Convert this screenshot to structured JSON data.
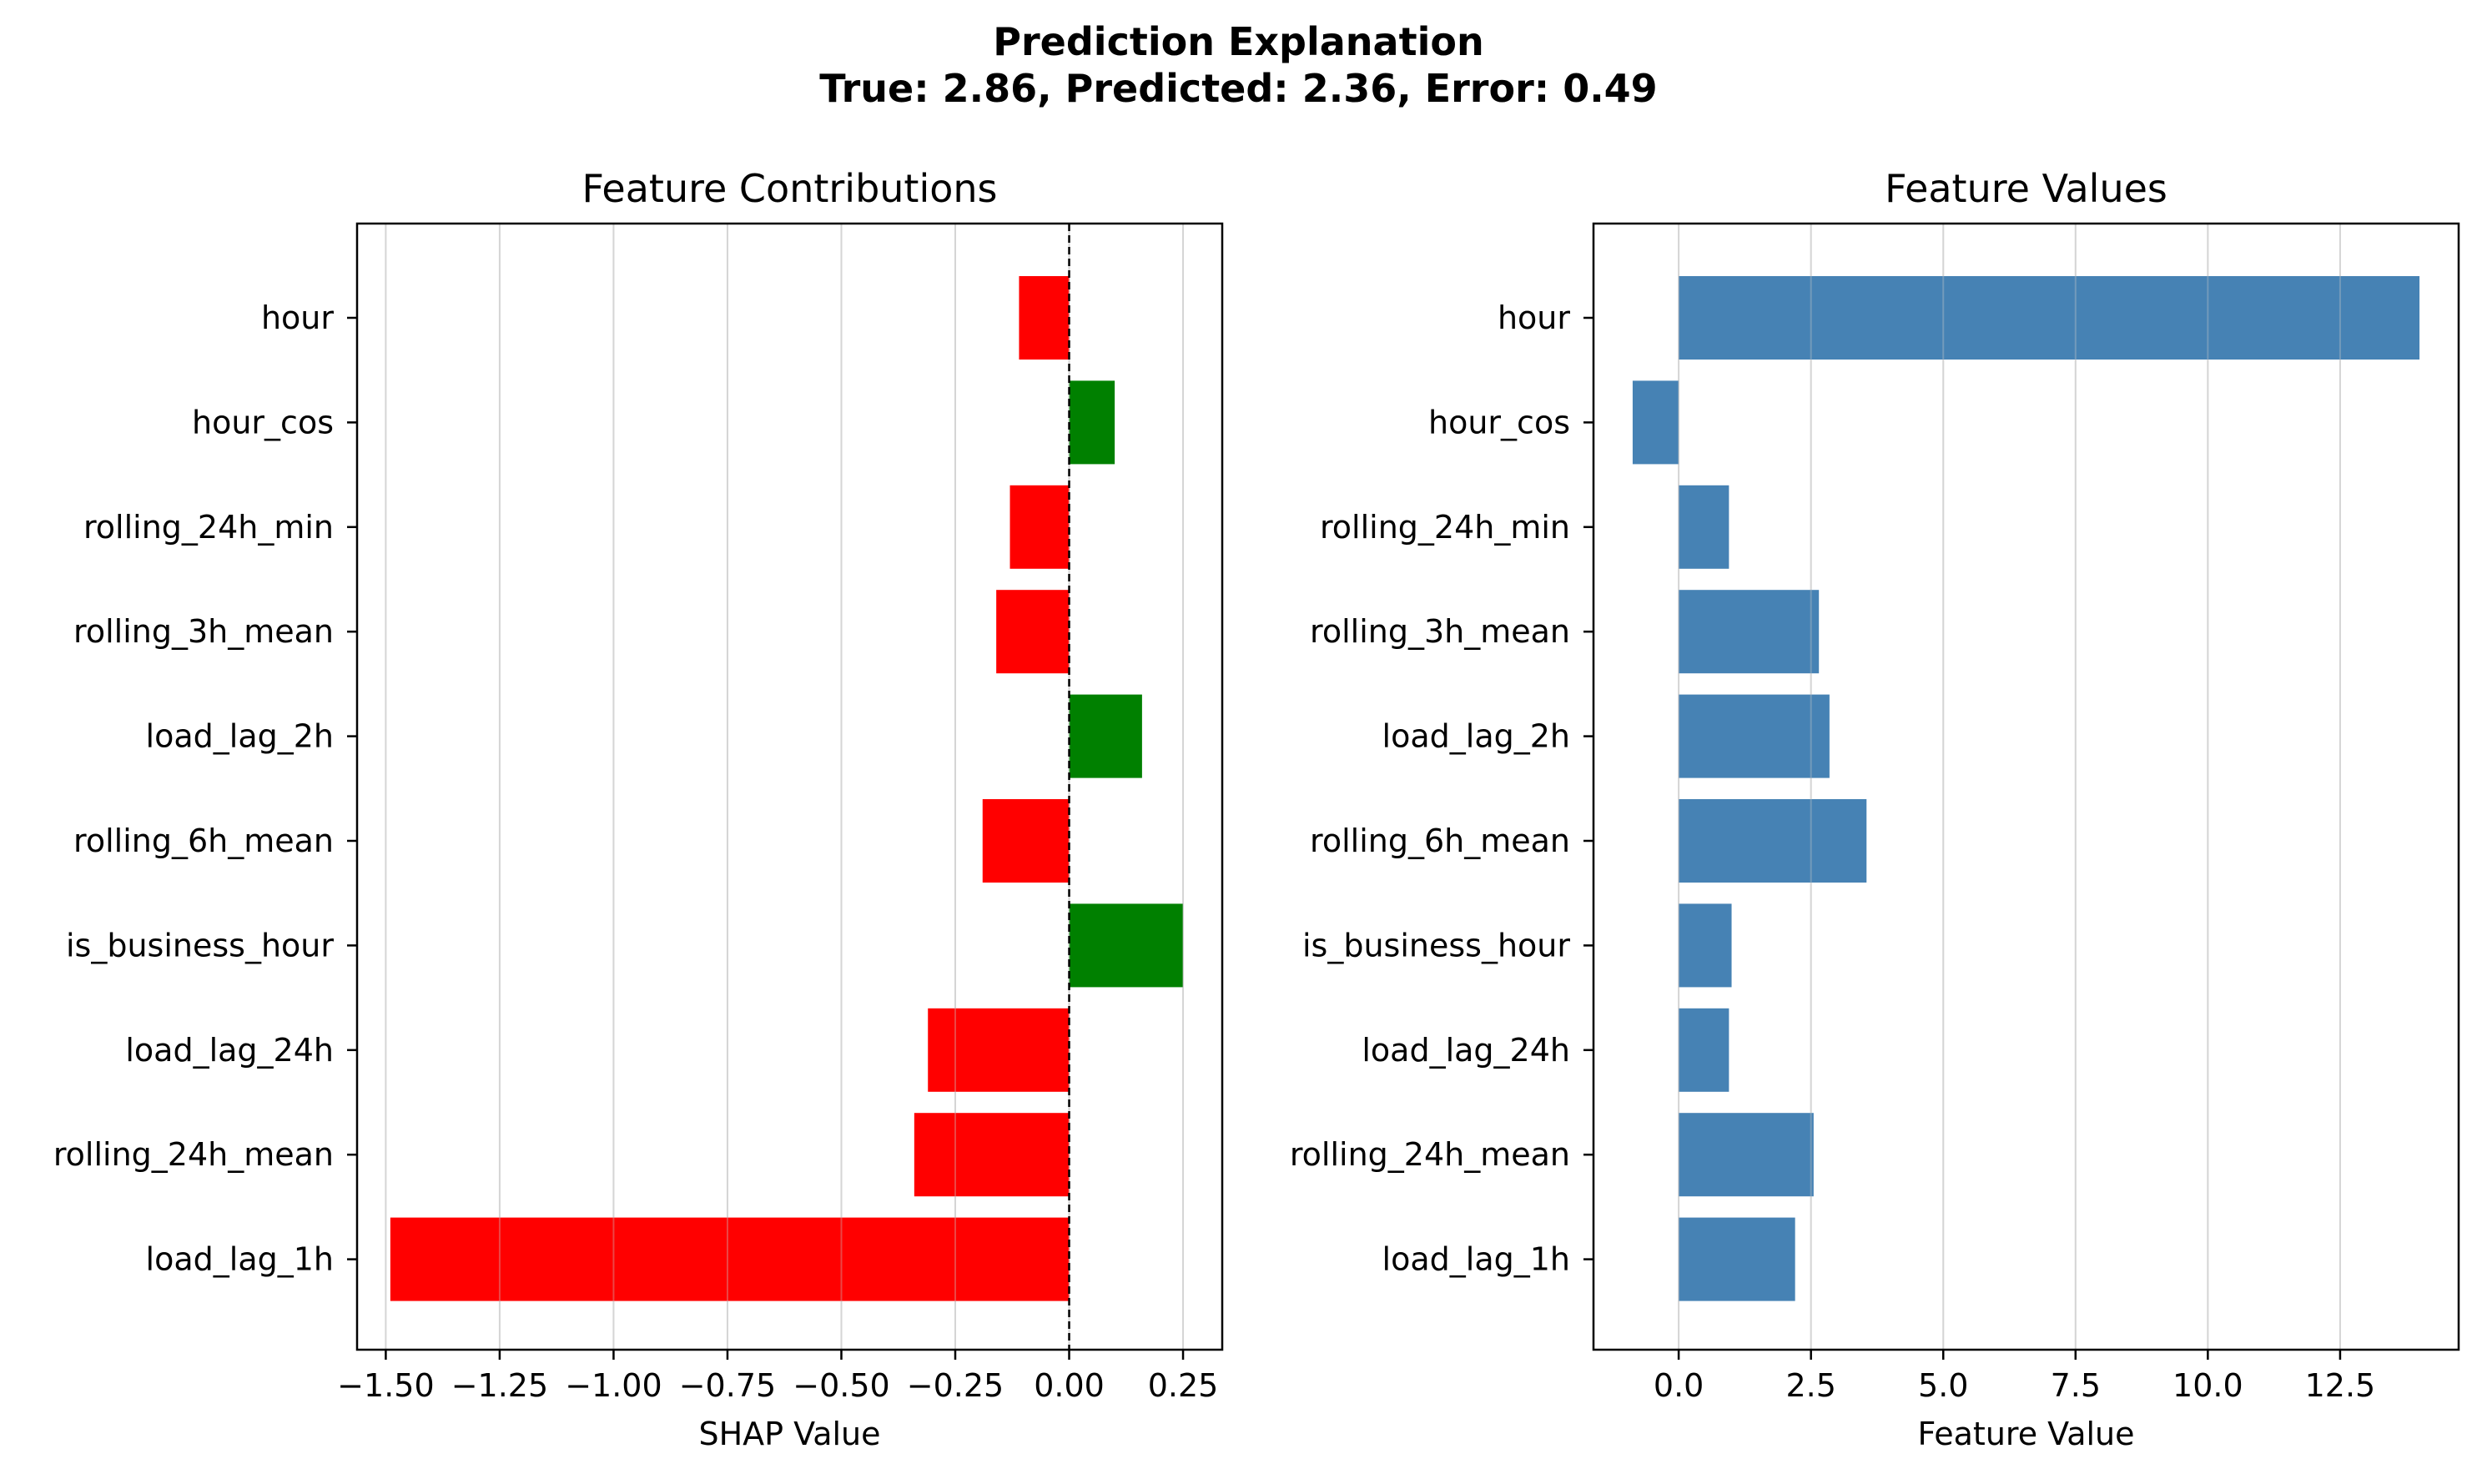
{
  "figure": {
    "title_line1": "Prediction Explanation",
    "title_line2": "True: 2.86, Predicted: 2.36, Error: 0.49"
  },
  "chart_data": [
    {
      "type": "bar",
      "orientation": "horizontal",
      "title": "Feature Contributions",
      "xlabel": "SHAP Value",
      "ylabel": "",
      "categories": [
        "hour",
        "hour_cos",
        "rolling_24h_min",
        "rolling_3h_mean",
        "load_lag_2h",
        "rolling_6h_mean",
        "is_business_hour",
        "load_lag_24h",
        "rolling_24h_mean",
        "load_lag_1h"
      ],
      "values": [
        -0.11,
        0.1,
        -0.13,
        -0.16,
        0.16,
        -0.19,
        0.25,
        -0.31,
        -0.34,
        -1.49
      ],
      "positive_color": "#008000",
      "negative_color": "#ff0000",
      "xlim": [
        -1.563,
        0.336
      ],
      "xticks": [
        -1.5,
        -1.25,
        -1.0,
        -0.75,
        -0.5,
        -0.25,
        0.0,
        0.25
      ],
      "xtick_labels": [
        "−1.50",
        "−1.25",
        "−1.00",
        "−0.75",
        "−0.50",
        "−0.25",
        "0.00",
        "0.25"
      ],
      "zero_line": "dashed",
      "grid": "x"
    },
    {
      "type": "bar",
      "orientation": "horizontal",
      "title": "Feature Values",
      "xlabel": "Feature Value",
      "ylabel": "",
      "categories": [
        "hour",
        "hour_cos",
        "rolling_24h_min",
        "rolling_3h_mean",
        "load_lag_2h",
        "rolling_6h_mean",
        "is_business_hour",
        "load_lag_24h",
        "rolling_24h_mean",
        "load_lag_1h"
      ],
      "values": [
        14.0,
        -0.87,
        0.95,
        2.65,
        2.85,
        3.55,
        1.0,
        0.95,
        2.55,
        2.2
      ],
      "color": "#4682b4",
      "xlim": [
        -1.61,
        14.74
      ],
      "xticks": [
        0,
        2.5,
        5,
        7.5,
        10,
        12.5
      ],
      "xtick_labels": [
        "0.0",
        "2.5",
        "5.0",
        "7.5",
        "10.0",
        "12.5"
      ],
      "grid": "x"
    }
  ]
}
